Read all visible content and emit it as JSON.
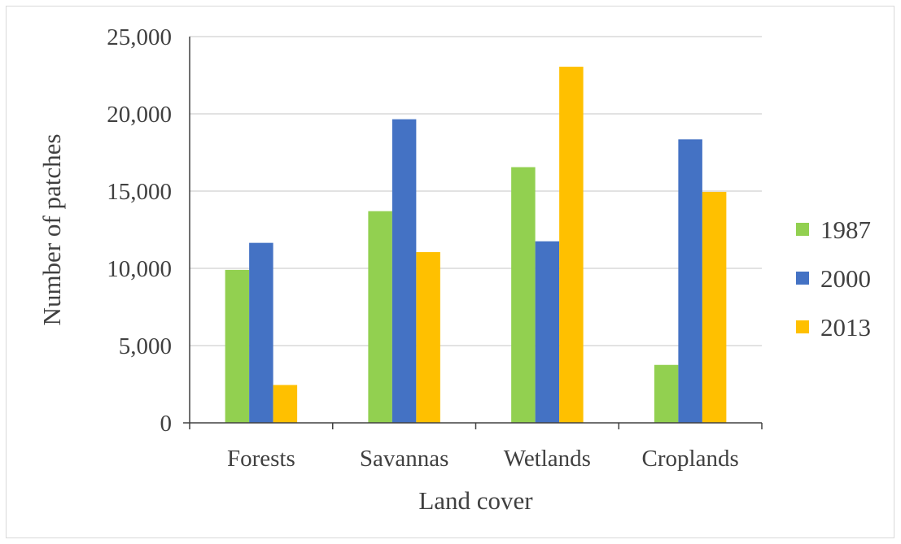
{
  "chart_data": {
    "type": "bar",
    "categories": [
      "Forests",
      "Savannas",
      "Wetlands",
      "Croplands"
    ],
    "series": [
      {
        "name": "1987",
        "color": "#92d050",
        "values": [
          9900,
          13700,
          16550,
          3750
        ]
      },
      {
        "name": "2000",
        "color": "#4472c4",
        "values": [
          11650,
          19650,
          11750,
          18350
        ]
      },
      {
        "name": "2013",
        "color": "#ffc000",
        "values": [
          2450,
          11050,
          23050,
          14950
        ]
      }
    ],
    "xlabel": "Land cover",
    "ylabel": "Number of patches",
    "ylim": [
      0,
      25000
    ],
    "yticks": [
      "0",
      "5,000",
      "10,000",
      "15,000",
      "20,000",
      "25,000"
    ],
    "ytick_values": [
      0,
      5000,
      10000,
      15000,
      20000,
      25000
    ],
    "grid": true,
    "legend": "right"
  }
}
